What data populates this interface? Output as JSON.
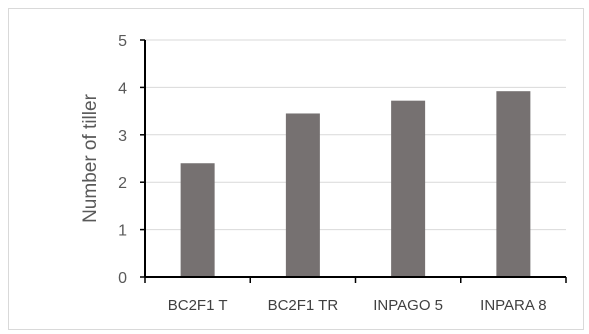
{
  "chart_data": {
    "type": "bar",
    "title": "",
    "xlabel": "",
    "ylabel": "Number of tiller",
    "categories": [
      "BC2F1 T",
      "BC2F1 TR",
      "INPAGO 5",
      "INPARA 8"
    ],
    "values": [
      2.4,
      3.45,
      3.72,
      3.92
    ],
    "ylim": [
      0,
      5
    ],
    "yticks": [
      0,
      1,
      2,
      3,
      4,
      5
    ],
    "grid": true,
    "legend": "none",
    "bar_color": "#767171",
    "grid_color": "#d9d9d9",
    "axis_color": "#000000"
  }
}
